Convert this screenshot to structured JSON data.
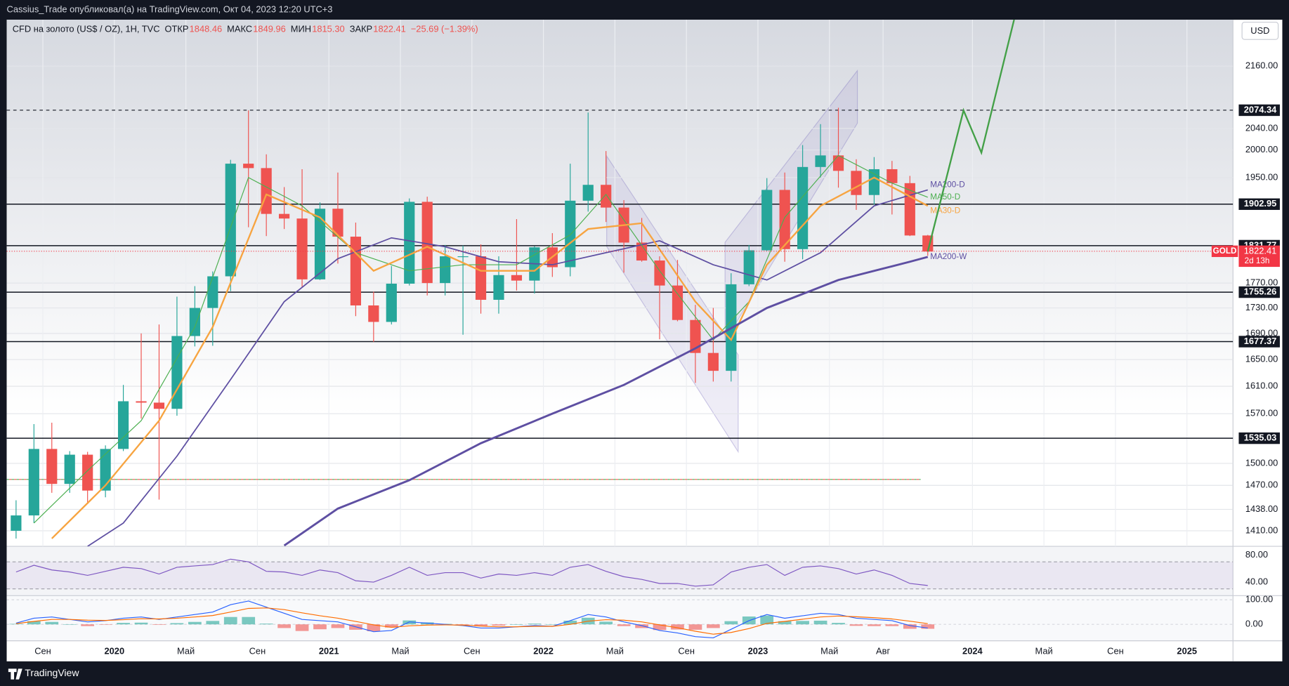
{
  "top_bar": "Cassius_Trade опубликовал(а) на TradingView.com, Окт 04, 2023 12:20 UTC+3",
  "footer": "TradingView",
  "chart_data": [
    {
      "type": "candlestick",
      "title": "CFD на золото (US$ / OZ), 1H, TVC",
      "header": {
        "open_label": "ОТКР",
        "open": 1848.46,
        "high_label": "МАКС",
        "high": 1849.96,
        "low_label": "МИН",
        "low": {
          "value": 1815.3,
          "label": "1815.30"
        },
        "close_label": "ЗАКР",
        "close": 1822.41,
        "change": "−25.69 (−1.39%)"
      },
      "currency": "USD",
      "log_scale": true,
      "grid": true,
      "up_color": "#26a69a",
      "down_color": "#ef5350",
      "ylim": [
        1390,
        2254
      ],
      "yticks": [
        {
          "value": 2160,
          "label": "2160.00"
        },
        {
          "value": 2040,
          "label": "2040.00"
        },
        {
          "value": 2000,
          "label": "2000.00"
        },
        {
          "value": 1950,
          "label": "1950.00"
        },
        {
          "value": 1770,
          "label": "1770.00"
        },
        {
          "value": 1730,
          "label": "1730.00"
        },
        {
          "value": 1690,
          "label": "1690.00"
        },
        {
          "value": 1650,
          "label": "1650.00"
        },
        {
          "value": 1610,
          "label": "1610.00"
        },
        {
          "value": 1570,
          "label": "1570.00"
        },
        {
          "value": 1500,
          "label": "1500.00"
        },
        {
          "value": 1470,
          "label": "1470.00"
        },
        {
          "value": 1438,
          "label": "1438.00"
        },
        {
          "value": 1410,
          "label": "1410.00"
        }
      ],
      "xticks": [
        {
          "value": "2019-09",
          "label": "Сен"
        },
        {
          "value": "2020-01",
          "label": "2020"
        },
        {
          "value": "2020-05",
          "label": "Май"
        },
        {
          "value": "2020-09",
          "label": "Сен"
        },
        {
          "value": "2021-01",
          "label": "2021"
        },
        {
          "value": "2021-05",
          "label": "Май"
        },
        {
          "value": "2021-09",
          "label": "Сен"
        },
        {
          "value": "2022-01",
          "label": "2022"
        },
        {
          "value": "2022-05",
          "label": "Май"
        },
        {
          "value": "2022-09",
          "label": "Сен"
        },
        {
          "value": "2023-01",
          "label": "2023"
        },
        {
          "value": "2023-05",
          "label": "Май"
        },
        {
          "value": "2023-08",
          "label": "Авг"
        },
        {
          "value": "2024-01",
          "label": "2024"
        },
        {
          "value": "2024-05",
          "label": "Май"
        },
        {
          "value": "2024-09",
          "label": "Сен"
        },
        {
          "value": "2025-01",
          "label": "2025"
        }
      ],
      "x": [
        "2019-07",
        "2019-08",
        "2019-09",
        "2019-10",
        "2019-11",
        "2019-12",
        "2020-01",
        "2020-02",
        "2020-03",
        "2020-04",
        "2020-05",
        "2020-06",
        "2020-07",
        "2020-08",
        "2020-09",
        "2020-10",
        "2020-11",
        "2020-12",
        "2021-01",
        "2021-02",
        "2021-03",
        "2021-04",
        "2021-05",
        "2021-06",
        "2021-07",
        "2021-08",
        "2021-09",
        "2021-10",
        "2021-11",
        "2021-12",
        "2022-01",
        "2022-02",
        "2022-03",
        "2022-04",
        "2022-05",
        "2022-06",
        "2022-07",
        "2022-08",
        "2022-09",
        "2022-10",
        "2022-11",
        "2022-12",
        "2023-01",
        "2023-02",
        "2023-03",
        "2023-04",
        "2023-05",
        "2023-06",
        "2023-07",
        "2023-08",
        "2023-09",
        "2023-10"
      ],
      "open": [
        1410,
        1430,
        1520,
        1472,
        1512,
        1463,
        1520,
        1588,
        1586,
        1577,
        1686,
        1730,
        1781,
        1975,
        1967,
        1886,
        1878,
        1776,
        1895,
        1847,
        1734,
        1708,
        1769,
        1907,
        1770,
        1814,
        1814,
        1743,
        1783,
        1774,
        1829,
        1796,
        1909,
        1937,
        1897,
        1837,
        1807,
        1766,
        1711,
        1660,
        1633,
        1768,
        1824,
        1928,
        1826,
        1969,
        1990,
        1962,
        1919,
        1965,
        1940,
        1849
      ],
      "high": [
        1450,
        1555,
        1557,
        1517,
        1516,
        1525,
        1612,
        1690,
        1704,
        1748,
        1765,
        1789,
        1982,
        2074,
        1992,
        1933,
        1965,
        1906,
        1959,
        1871,
        1756,
        1798,
        1913,
        1916,
        1833,
        1832,
        1834,
        1814,
        1877,
        1831,
        1853,
        1975,
        2070,
        1998,
        1910,
        1879,
        1814,
        1808,
        1735,
        1730,
        1786,
        1833,
        1949,
        1959,
        2009,
        2048,
        2079,
        1983,
        1987,
        1980,
        1953,
        1850
      ],
      "low": [
        1400,
        1420,
        1460,
        1460,
        1445,
        1454,
        1517,
        1563,
        1451,
        1567,
        1670,
        1671,
        1757,
        1863,
        1848,
        1860,
        1764,
        1775,
        1802,
        1717,
        1677,
        1704,
        1766,
        1750,
        1750,
        1688,
        1721,
        1721,
        1758,
        1753,
        1780,
        1781,
        1890,
        1872,
        1787,
        1805,
        1681,
        1709,
        1615,
        1617,
        1617,
        1765,
        1823,
        1805,
        1809,
        1950,
        1932,
        1893,
        1902,
        1885,
        1848,
        1815
      ],
      "close": [
        1430,
        1520,
        1472,
        1512,
        1463,
        1520,
        1588,
        1586,
        1577,
        1686,
        1730,
        1781,
        1975,
        1967,
        1886,
        1878,
        1776,
        1895,
        1847,
        1734,
        1708,
        1769,
        1907,
        1770,
        1814,
        1814,
        1743,
        1783,
        1774,
        1829,
        1796,
        1909,
        1937,
        1897,
        1837,
        1807,
        1766,
        1711,
        1660,
        1633,
        1768,
        1824,
        1928,
        1826,
        1969,
        1990,
        1962,
        1919,
        1965,
        1940,
        1849,
        1822
      ],
      "series": [
        {
          "name": "MA200-D",
          "color": "#5e4fa2",
          "x": [
            "2019-11",
            "2020-01",
            "2020-04",
            "2020-07",
            "2020-10",
            "2021-01",
            "2021-04",
            "2021-07",
            "2021-10",
            "2022-01",
            "2022-04",
            "2022-07",
            "2022-10",
            "2023-01",
            "2023-04",
            "2023-07",
            "2023-10"
          ],
          "values": [
            1390,
            1420,
            1510,
            1620,
            1740,
            1810,
            1845,
            1830,
            1805,
            1800,
            1820,
            1840,
            1800,
            1775,
            1820,
            1900,
            1928
          ]
        },
        {
          "name": "MA50-D",
          "color": "#4caf50",
          "x": [
            "2019-08",
            "2019-11",
            "2020-02",
            "2020-05",
            "2020-08",
            "2020-11",
            "2021-02",
            "2021-05",
            "2021-08",
            "2021-11",
            "2022-02",
            "2022-04",
            "2022-07",
            "2022-10",
            "2022-12",
            "2023-02",
            "2023-05",
            "2023-08",
            "2023-10"
          ],
          "values": [
            1420,
            1490,
            1560,
            1700,
            1950,
            1900,
            1820,
            1790,
            1800,
            1800,
            1850,
            1920,
            1790,
            1680,
            1740,
            1880,
            1990,
            1940,
            1915
          ]
        },
        {
          "name": "MA30-D",
          "color": "#f7a440",
          "x": [
            "2019-09",
            "2019-12",
            "2020-03",
            "2020-06",
            "2020-09",
            "2020-12",
            "2021-03",
            "2021-06",
            "2021-09",
            "2021-12",
            "2022-03",
            "2022-06",
            "2022-09",
            "2022-11",
            "2023-01",
            "2023-04",
            "2023-07",
            "2023-10"
          ],
          "values": [
            1400,
            1470,
            1560,
            1700,
            1920,
            1880,
            1790,
            1830,
            1790,
            1790,
            1860,
            1870,
            1740,
            1680,
            1800,
            1900,
            1950,
            1900
          ]
        },
        {
          "name": "MA200-W",
          "color": "#5e4fa2",
          "x": [
            "2020-10",
            "2021-01",
            "2021-05",
            "2021-09",
            "2022-01",
            "2022-05",
            "2022-09",
            "2023-01",
            "2023-05",
            "2023-09",
            "2023-10"
          ],
          "values": [
            1391,
            1439,
            1477,
            1528,
            1570,
            1612,
            1667,
            1730,
            1775,
            1805,
            1813
          ]
        }
      ],
      "projection": {
        "color": "#43a047",
        "x": [
          "2023-10",
          "2023-12",
          "2024-01",
          "2024-03"
        ],
        "values": [
          1822,
          2074,
          1995,
          2280
        ]
      },
      "levels": [
        {
          "value": 2074.34,
          "dashed": true
        },
        {
          "value": 1902.95
        },
        {
          "value": 1831.77
        },
        {
          "value": 1755.26
        },
        {
          "value": 1677.37
        },
        {
          "value": 1535.03
        }
      ],
      "dotted_level": 1478,
      "last_price": {
        "name": "GOLD",
        "value": 1822.41,
        "countdown": "2d 13h",
        "color": "#f23645"
      }
    },
    {
      "type": "rsi",
      "color": "#7e57c2",
      "ylim": [
        20,
        93
      ],
      "bands": [
        70,
        30
      ],
      "yticks": [
        {
          "value": 80,
          "label": "80.00"
        },
        {
          "value": 40,
          "label": "40.00"
        }
      ],
      "x": [
        "2019-07",
        "2019-08",
        "2019-09",
        "2019-10",
        "2019-11",
        "2019-12",
        "2020-01",
        "2020-02",
        "2020-03",
        "2020-04",
        "2020-05",
        "2020-06",
        "2020-07",
        "2020-08",
        "2020-09",
        "2020-10",
        "2020-11",
        "2020-12",
        "2021-01",
        "2021-02",
        "2021-03",
        "2021-04",
        "2021-05",
        "2021-06",
        "2021-07",
        "2021-08",
        "2021-09",
        "2021-10",
        "2021-11",
        "2021-12",
        "2022-01",
        "2022-02",
        "2022-03",
        "2022-04",
        "2022-05",
        "2022-06",
        "2022-07",
        "2022-08",
        "2022-09",
        "2022-10",
        "2022-11",
        "2022-12",
        "2023-01",
        "2023-02",
        "2023-03",
        "2023-04",
        "2023-05",
        "2023-06",
        "2023-07",
        "2023-08",
        "2023-09",
        "2023-10"
      ],
      "values": [
        55,
        65,
        58,
        55,
        50,
        56,
        62,
        60,
        52,
        62,
        64,
        66,
        74,
        70,
        56,
        55,
        50,
        58,
        54,
        42,
        40,
        50,
        62,
        50,
        54,
        54,
        46,
        52,
        50,
        54,
        50,
        62,
        66,
        56,
        48,
        44,
        38,
        38,
        34,
        36,
        55,
        62,
        66,
        50,
        62,
        64,
        60,
        52,
        58,
        50,
        38,
        35
      ]
    },
    {
      "type": "macd",
      "ylim": [
        -67,
        117
      ],
      "yticks": [
        {
          "value": 100,
          "label": "100.00"
        },
        {
          "value": 0,
          "label": "0.00"
        }
      ],
      "macd_color": "#2962ff",
      "signal_color": "#ff6d00",
      "up_color": "#26a69a",
      "down_color": "#ef5350",
      "x": [
        "2019-07",
        "2019-08",
        "2019-09",
        "2019-10",
        "2019-11",
        "2019-12",
        "2020-01",
        "2020-02",
        "2020-03",
        "2020-04",
        "2020-05",
        "2020-06",
        "2020-07",
        "2020-08",
        "2020-09",
        "2020-10",
        "2020-11",
        "2020-12",
        "2021-01",
        "2021-02",
        "2021-03",
        "2021-04",
        "2021-05",
        "2021-06",
        "2021-07",
        "2021-08",
        "2021-09",
        "2021-10",
        "2021-11",
        "2021-12",
        "2022-01",
        "2022-02",
        "2022-03",
        "2022-04",
        "2022-05",
        "2022-06",
        "2022-07",
        "2022-08",
        "2022-09",
        "2022-10",
        "2022-11",
        "2022-12",
        "2023-01",
        "2023-02",
        "2023-03",
        "2023-04",
        "2023-05",
        "2023-06",
        "2023-07",
        "2023-08",
        "2023-09",
        "2023-10"
      ],
      "macd": [
        5,
        25,
        30,
        20,
        10,
        15,
        25,
        30,
        20,
        30,
        40,
        50,
        80,
        95,
        70,
        45,
        20,
        15,
        10,
        -10,
        -30,
        -25,
        10,
        5,
        0,
        -5,
        -15,
        -15,
        -10,
        -5,
        -8,
        15,
        40,
        30,
        10,
        -5,
        -25,
        -35,
        -50,
        -55,
        -20,
        15,
        40,
        25,
        35,
        45,
        40,
        25,
        20,
        15,
        -5,
        -15
      ],
      "signal": [
        3,
        12,
        20,
        20,
        17,
        16,
        19,
        23,
        22,
        25,
        30,
        36,
        50,
        65,
        67,
        60,
        47,
        35,
        25,
        12,
        -2,
        -12,
        -6,
        -3,
        -2,
        -3,
        -7,
        -10,
        -10,
        -8,
        -8,
        0,
        13,
        19,
        17,
        10,
        -2,
        -14,
        -28,
        -40,
        -33,
        -17,
        4,
        12,
        21,
        30,
        34,
        31,
        27,
        22,
        13,
        3
      ],
      "histogram": [
        2,
        13,
        10,
        0,
        -7,
        -1,
        6,
        7,
        -2,
        5,
        10,
        14,
        30,
        30,
        3,
        -15,
        -27,
        -20,
        -15,
        -22,
        -28,
        -13,
        16,
        8,
        2,
        -2,
        -8,
        -5,
        0,
        3,
        0,
        15,
        27,
        11,
        -7,
        -15,
        -23,
        -21,
        -22,
        -15,
        13,
        32,
        36,
        13,
        14,
        15,
        6,
        -6,
        -7,
        -7,
        -18,
        -18
      ]
    }
  ]
}
